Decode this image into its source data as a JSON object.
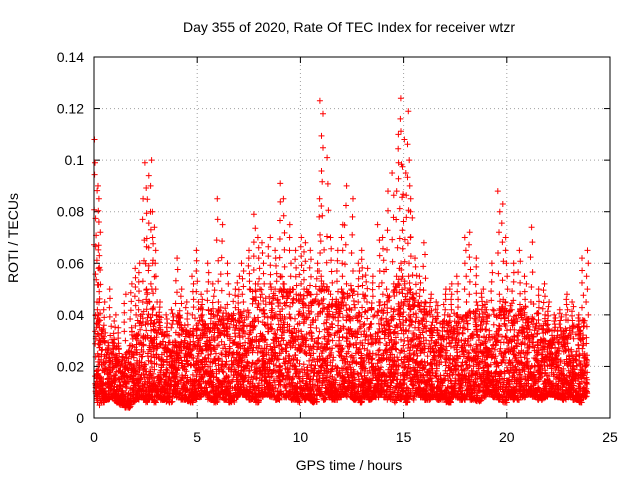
{
  "chart_data": {
    "type": "scatter",
    "title": "Day 355 of 2020, Rate Of TEC Index for receiver wtzr",
    "xlabel": "GPS time / hours",
    "ylabel": "ROTI / TECUs",
    "xlim": [
      0,
      25
    ],
    "ylim": [
      0,
      0.14
    ],
    "x_ticks": [
      "0",
      "5",
      "10",
      "15",
      "20",
      "25"
    ],
    "y_ticks": [
      "0",
      "0.02",
      "0.04",
      "0.06",
      "0.08",
      "0.1",
      "0.12",
      "0.14"
    ],
    "grid": true,
    "marker": "+",
    "series_color": "#ff0000",
    "density_note": "dense band mostly 0.005–0.04 TECU across 0–24 h",
    "series": [
      {
        "name": "ROTI",
        "x": [
          0.05,
          0.1,
          0.15,
          0.2,
          0.25,
          0.3,
          0.5,
          0.8,
          1.0,
          1.2,
          1.5,
          1.8,
          2.0,
          2.2,
          2.4,
          2.5,
          2.6,
          2.7,
          2.8,
          2.9,
          3.0,
          3.2,
          3.5,
          3.8,
          4.0,
          4.2,
          4.5,
          4.8,
          5.0,
          5.2,
          5.5,
          5.8,
          6.0,
          6.2,
          6.5,
          6.8,
          7.0,
          7.2,
          7.5,
          7.8,
          8.0,
          8.2,
          8.5,
          8.8,
          9.0,
          9.2,
          9.5,
          9.8,
          10.0,
          10.2,
          10.5,
          10.8,
          10.9,
          11.0,
          11.1,
          11.3,
          11.5,
          11.8,
          12.0,
          12.2,
          12.5,
          12.8,
          13.0,
          13.2,
          13.5,
          13.8,
          14.0,
          14.2,
          14.5,
          14.7,
          14.8,
          14.9,
          15.0,
          15.1,
          15.2,
          15.3,
          15.4,
          15.6,
          15.8,
          16.0,
          16.3,
          16.6,
          17.0,
          17.3,
          17.6,
          18.0,
          18.2,
          18.5,
          18.8,
          19.0,
          19.3,
          19.6,
          19.8,
          20.0,
          20.3,
          20.6,
          20.9,
          21.2,
          21.5,
          21.8,
          22.0,
          22.3,
          22.6,
          22.9,
          23.2,
          23.5,
          23.7,
          23.9
        ],
        "y": [
          0.108,
          0.099,
          0.09,
          0.085,
          0.072,
          0.063,
          0.045,
          0.05,
          0.04,
          0.035,
          0.048,
          0.052,
          0.058,
          0.06,
          0.085,
          0.099,
          0.094,
          0.08,
          0.1,
          0.074,
          0.065,
          0.045,
          0.04,
          0.042,
          0.062,
          0.05,
          0.045,
          0.055,
          0.065,
          0.048,
          0.06,
          0.052,
          0.085,
          0.075,
          0.06,
          0.05,
          0.055,
          0.06,
          0.065,
          0.079,
          0.07,
          0.068,
          0.07,
          0.065,
          0.091,
          0.085,
          0.075,
          0.065,
          0.07,
          0.068,
          0.065,
          0.06,
          0.085,
          0.123,
          0.118,
          0.101,
          0.07,
          0.065,
          0.075,
          0.09,
          0.085,
          0.06,
          0.065,
          0.058,
          0.055,
          0.075,
          0.07,
          0.088,
          0.095,
          0.11,
          0.116,
          0.124,
          0.108,
          0.095,
          0.119,
          0.1,
          0.085,
          0.062,
          0.055,
          0.068,
          0.048,
          0.045,
          0.05,
          0.052,
          0.055,
          0.07,
          0.072,
          0.062,
          0.05,
          0.045,
          0.06,
          0.088,
          0.083,
          0.07,
          0.06,
          0.065,
          0.055,
          0.074,
          0.05,
          0.052,
          0.045,
          0.04,
          0.042,
          0.048,
          0.045,
          0.04,
          0.062,
          0.065
        ],
        "band_low": [
          0.008,
          0.007,
          0.006,
          0.007,
          0.005,
          0.006,
          0.007,
          0.008,
          0.006,
          0.005,
          0.004,
          0.006,
          0.007,
          0.008,
          0.007,
          0.006,
          0.007,
          0.008,
          0.007,
          0.006,
          0.008,
          0.007,
          0.006,
          0.009,
          0.008,
          0.007,
          0.006,
          0.007,
          0.008,
          0.009,
          0.007,
          0.006,
          0.008,
          0.007,
          0.006,
          0.008,
          0.009,
          0.008,
          0.007,
          0.006,
          0.008,
          0.009,
          0.008,
          0.007,
          0.009,
          0.008,
          0.007,
          0.006,
          0.008,
          0.007,
          0.006,
          0.008,
          0.009,
          0.008,
          0.007,
          0.008,
          0.007,
          0.008,
          0.009,
          0.008,
          0.007,
          0.006,
          0.008,
          0.007,
          0.008,
          0.009,
          0.008,
          0.007,
          0.006,
          0.008,
          0.007,
          0.008,
          0.007,
          0.006,
          0.007,
          0.008,
          0.007,
          0.009,
          0.008,
          0.007,
          0.008,
          0.007,
          0.006,
          0.008,
          0.007,
          0.008,
          0.007,
          0.006,
          0.008,
          0.009,
          0.008,
          0.007,
          0.006,
          0.008,
          0.007,
          0.008,
          0.009,
          0.008,
          0.007,
          0.008,
          0.009,
          0.008,
          0.007,
          0.008,
          0.007,
          0.006,
          0.008,
          0.007
        ],
        "band_high": [
          0.04,
          0.045,
          0.042,
          0.04,
          0.038,
          0.035,
          0.03,
          0.032,
          0.028,
          0.025,
          0.03,
          0.035,
          0.04,
          0.042,
          0.045,
          0.05,
          0.048,
          0.045,
          0.05,
          0.042,
          0.04,
          0.035,
          0.032,
          0.035,
          0.04,
          0.036,
          0.034,
          0.04,
          0.045,
          0.038,
          0.042,
          0.04,
          0.045,
          0.043,
          0.04,
          0.038,
          0.042,
          0.045,
          0.05,
          0.052,
          0.05,
          0.048,
          0.052,
          0.05,
          0.055,
          0.052,
          0.05,
          0.048,
          0.052,
          0.05,
          0.048,
          0.045,
          0.05,
          0.055,
          0.052,
          0.05,
          0.048,
          0.045,
          0.05,
          0.052,
          0.05,
          0.045,
          0.048,
          0.045,
          0.042,
          0.045,
          0.048,
          0.05,
          0.052,
          0.055,
          0.058,
          0.06,
          0.055,
          0.052,
          0.055,
          0.05,
          0.048,
          0.045,
          0.042,
          0.045,
          0.04,
          0.038,
          0.04,
          0.042,
          0.04,
          0.045,
          0.048,
          0.045,
          0.042,
          0.04,
          0.042,
          0.048,
          0.046,
          0.045,
          0.042,
          0.044,
          0.04,
          0.045,
          0.038,
          0.04,
          0.036,
          0.034,
          0.035,
          0.038,
          0.036,
          0.034,
          0.038,
          0.04
        ]
      }
    ]
  }
}
